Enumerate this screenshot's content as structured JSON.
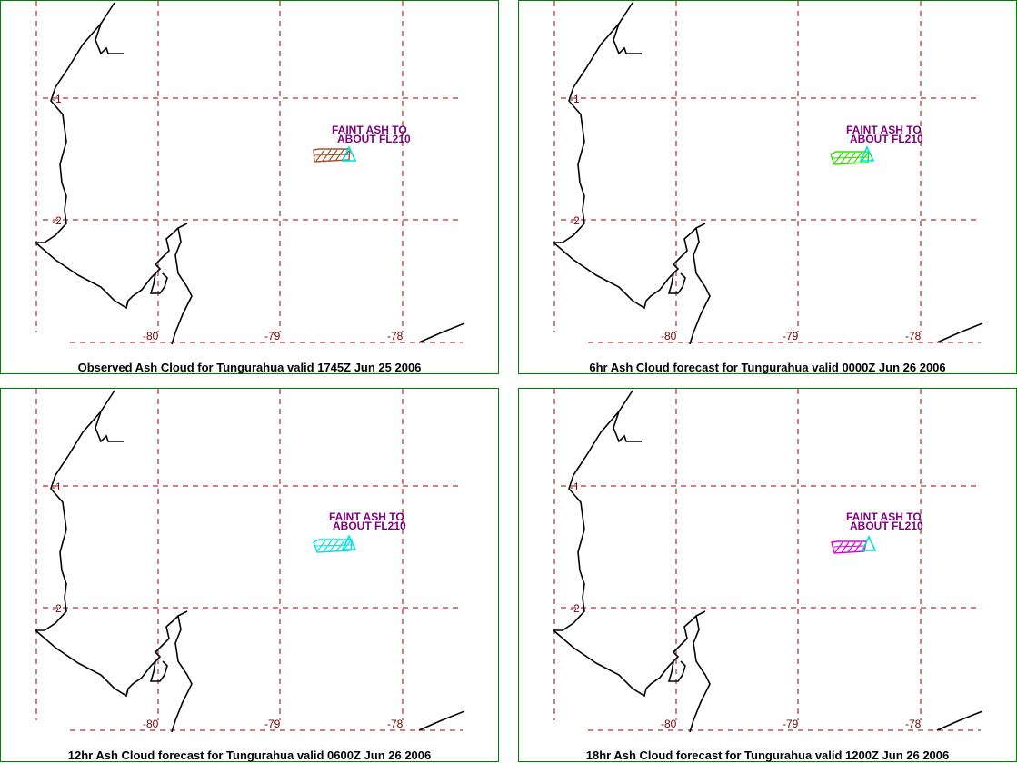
{
  "colors": {
    "panel_border": "#008000",
    "grid": "#990000",
    "coast": "#000000",
    "annotation": "#800080",
    "observed_cloud": "#a0522d",
    "forecast_6hr": "#33dd00",
    "forecast_12hr": "#00e0e0",
    "forecast_18hr": "#dd00dd",
    "volcano_marker": "#00e0e0"
  },
  "icons": {
    "volcano": "triangle-icon",
    "ash_cloud": "hatched-polygon"
  },
  "map": {
    "lat_labels": [
      "-1",
      "-2"
    ],
    "lon_labels": [
      "-80",
      "-79",
      "-78"
    ],
    "annotation_lines": [
      "FAINT ASH TO",
      "ABOUT FL210"
    ]
  },
  "panels": [
    {
      "id": "observed",
      "caption": "Observed Ash Cloud for Tungurahua valid 1745Z Jun 25 2006",
      "cloud_color_key": "observed_cloud"
    },
    {
      "id": "fcst6",
      "caption": "6hr Ash Cloud forecast for Tungurahua valid 0000Z Jun 26 2006",
      "cloud_color_key": "forecast_6hr"
    },
    {
      "id": "fcst12",
      "caption": "12hr Ash Cloud forecast for Tungurahua valid 0600Z Jun 26 2006",
      "cloud_color_key": "forecast_12hr"
    },
    {
      "id": "fcst18",
      "caption": "18hr Ash Cloud forecast for Tungurahua valid 1200Z Jun 26 2006",
      "cloud_color_key": "forecast_18hr"
    }
  ]
}
